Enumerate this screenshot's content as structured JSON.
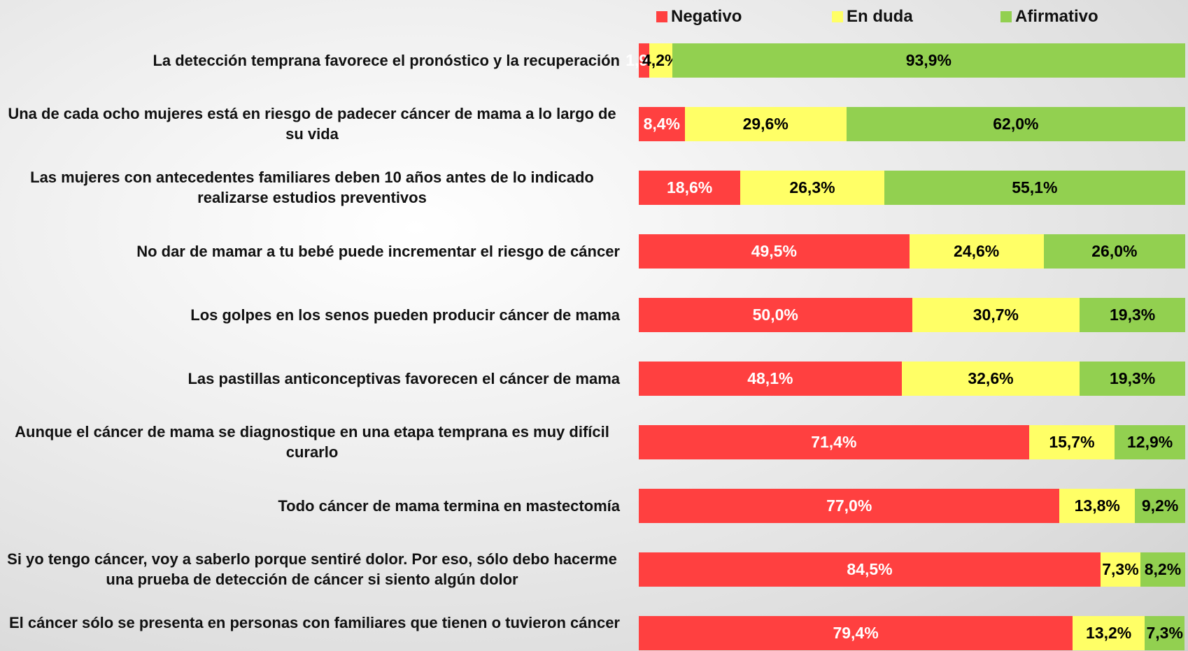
{
  "chart_data": {
    "type": "stacked_bar_horizontal",
    "categories": [
      "La detección temprana favorece el pronóstico y la recuperación",
      "Una de cada ocho mujeres está en riesgo de padecer cáncer de mama a lo largo de su vida",
      "Las mujeres con antecedentes familiares deben 10 años antes de lo indicado realizarse estudios preventivos",
      "No dar de mamar a tu bebé puede incrementar el riesgo de cáncer",
      "Los golpes en los senos pueden producir cáncer de mama",
      "Las pastillas anticonceptivas favorecen el cáncer de mama",
      "Aunque el cáncer de mama se diagnostique en una etapa temprana es muy difícil curarlo",
      "Todo cáncer de mama termina en mastectomía",
      "Si yo tengo cáncer, voy a saberlo porque sentiré dolor. Por eso, sólo debo hacerme una prueba de detección de cáncer si siento algún dolor",
      "El cáncer sólo se presenta en personas con familiares que tienen o tuvieron cáncer"
    ],
    "xlim": [
      0,
      100
    ],
    "series": [
      {
        "name": "Negativo",
        "color": "#ff4040",
        "label_color": "#ffffff",
        "values": [
          1.9,
          8.4,
          18.6,
          49.5,
          50.0,
          48.1,
          71.4,
          77.0,
          84.5,
          79.4
        ],
        "value_labels": [
          "1,9%",
          "8,4%",
          "18,6%",
          "49,5%",
          "50,0%",
          "48,1%",
          "71,4%",
          "77,0%",
          "84,5%",
          "79,4%"
        ]
      },
      {
        "name": "En duda",
        "color": "#ffff66",
        "label_color": "#000000",
        "values": [
          4.2,
          29.6,
          26.3,
          24.6,
          30.7,
          32.6,
          15.7,
          13.8,
          7.3,
          13.2
        ],
        "value_labels": [
          "4,2%",
          "29,6%",
          "26,3%",
          "24,6%",
          "30,7%",
          "32,6%",
          "15,7%",
          "13,8%",
          "7,3%",
          "13,2%"
        ]
      },
      {
        "name": "Afirmativo",
        "color": "#92d050",
        "label_color": "#000000",
        "values": [
          93.9,
          62.0,
          55.1,
          26.0,
          19.3,
          19.3,
          12.9,
          9.2,
          8.2,
          7.3
        ],
        "value_labels": [
          "93,9%",
          "62,0%",
          "55,1%",
          "26,0%",
          "19,3%",
          "19,3%",
          "12,9%",
          "9,2%",
          "8,2%",
          "7,3%"
        ]
      }
    ]
  }
}
